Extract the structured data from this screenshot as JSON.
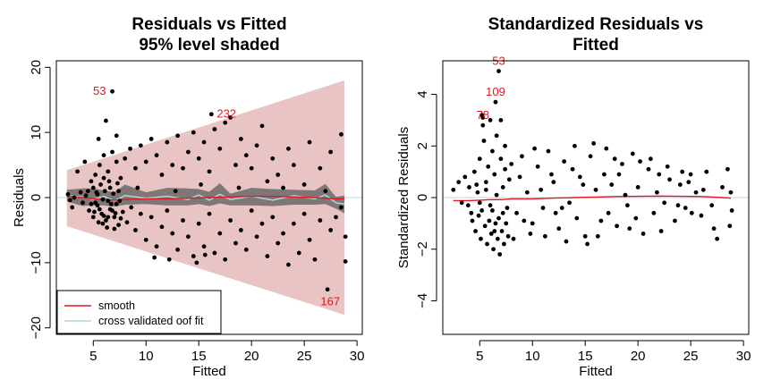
{
  "chart_data": [
    {
      "type": "scatter",
      "title_lines": [
        "Residuals vs Fitted",
        "95% level shaded"
      ],
      "xlabel": "Fitted",
      "ylabel": "Residuals",
      "xlim": [
        1.5,
        30.5
      ],
      "ylim": [
        -21,
        21
      ],
      "xticks": [
        5,
        10,
        15,
        20,
        25,
        30
      ],
      "yticks": [
        -20,
        -10,
        0,
        10,
        20
      ],
      "reference_line_y": 0,
      "band": {
        "x": [
          2.5,
          28.8
        ],
        "upper": [
          4.2,
          18.0
        ],
        "lower": [
          -4.4,
          -18.0
        ]
      },
      "legend": {
        "position": "bottom-left",
        "entries": [
          {
            "label": "smooth",
            "color": "#e8141f"
          },
          {
            "label": "cross validated oof fit",
            "color": "#a9d8df"
          }
        ]
      },
      "annotations": [
        {
          "label": "53",
          "x": 6.8,
          "y": 16.3
        },
        {
          "label": "232",
          "x": 16.2,
          "y": 12.8
        },
        {
          "label": "167",
          "x": 27.2,
          "y": -14.1
        }
      ],
      "smooth": {
        "x": [
          2.5,
          4,
          5,
          6,
          7,
          8,
          10,
          12,
          14,
          16,
          18,
          20,
          22,
          24,
          26,
          28,
          28.8
        ],
        "y": [
          0.2,
          0.0,
          -0.2,
          -0.3,
          -0.4,
          -0.3,
          -0.2,
          -0.2,
          -0.1,
          0.0,
          0.1,
          0.2,
          0.2,
          0.1,
          0.0,
          -0.2,
          -0.2
        ]
      },
      "oof_fit": {
        "x": [
          2.5,
          4,
          5,
          6,
          7,
          8,
          10,
          12,
          14,
          15,
          16,
          17,
          18,
          20,
          22,
          24,
          26,
          27,
          28,
          28.8
        ],
        "y": [
          0.3,
          0.1,
          -0.3,
          0.2,
          -0.5,
          0.3,
          -0.1,
          0.2,
          -0.3,
          0.4,
          -0.4,
          0.5,
          -0.3,
          0.2,
          -0.4,
          0.3,
          -0.2,
          0.4,
          -0.8,
          -1.0
        ]
      },
      "points": [
        [
          6.8,
          16.3
        ],
        [
          16.2,
          12.8
        ],
        [
          27.2,
          -14.1
        ],
        [
          6.2,
          11.8
        ],
        [
          5.5,
          9.0
        ],
        [
          7.2,
          9.5
        ],
        [
          18.0,
          12.3
        ],
        [
          21.0,
          11.0
        ],
        [
          17.5,
          11.5
        ],
        [
          3.5,
          4.0
        ],
        [
          4.2,
          5.5
        ],
        [
          4.8,
          2.5
        ],
        [
          5.2,
          3.5
        ],
        [
          5.6,
          5.0
        ],
        [
          6.0,
          6.5
        ],
        [
          6.4,
          4.0
        ],
        [
          6.8,
          7.0
        ],
        [
          7.2,
          5.5
        ],
        [
          7.6,
          3.0
        ],
        [
          8.0,
          6.0
        ],
        [
          8.5,
          7.5
        ],
        [
          9.0,
          4.5
        ],
        [
          9.5,
          8.0
        ],
        [
          10.0,
          5.5
        ],
        [
          10.5,
          9.0
        ],
        [
          11.0,
          6.5
        ],
        [
          11.5,
          3.5
        ],
        [
          12.0,
          8.5
        ],
        [
          12.5,
          5.0
        ],
        [
          13.0,
          9.5
        ],
        [
          13.5,
          4.5
        ],
        [
          14.0,
          7.0
        ],
        [
          14.5,
          10.0
        ],
        [
          15.0,
          6.0
        ],
        [
          15.5,
          8.5
        ],
        [
          16.0,
          4.0
        ],
        [
          16.5,
          10.5
        ],
        [
          17.0,
          7.5
        ],
        [
          18.5,
          5.0
        ],
        [
          19.0,
          9.0
        ],
        [
          19.5,
          6.5
        ],
        [
          20.0,
          4.5
        ],
        [
          20.5,
          8.0
        ],
        [
          22.0,
          6.0
        ],
        [
          22.5,
          3.5
        ],
        [
          23.5,
          7.5
        ],
        [
          24.0,
          5.0
        ],
        [
          25.5,
          8.5
        ],
        [
          26.5,
          4.5
        ],
        [
          27.5,
          7.0
        ],
        [
          28.5,
          9.7
        ],
        [
          4.5,
          1.0
        ],
        [
          5.0,
          1.5
        ],
        [
          5.4,
          0.5
        ],
        [
          6.6,
          1.5
        ],
        [
          7.4,
          1.0
        ],
        [
          9.2,
          1.5
        ],
        [
          12.8,
          1.0
        ],
        [
          15.2,
          2.0
        ],
        [
          18.8,
          1.5
        ],
        [
          21.5,
          2.5
        ],
        [
          23.0,
          1.5
        ],
        [
          25.0,
          2.0
        ],
        [
          27.0,
          1.0
        ],
        [
          3.0,
          -1.5
        ],
        [
          4.0,
          -0.8
        ],
        [
          4.6,
          -2.0
        ],
        [
          5.0,
          -3.0
        ],
        [
          5.4,
          -1.2
        ],
        [
          5.8,
          -2.5
        ],
        [
          6.2,
          -3.5
        ],
        [
          6.6,
          -1.8
        ],
        [
          7.0,
          -3.0
        ],
        [
          7.4,
          -4.2
        ],
        [
          7.8,
          -2.2
        ],
        [
          8.2,
          -3.8
        ],
        [
          8.6,
          -1.5
        ],
        [
          9.0,
          -5.0
        ],
        [
          9.5,
          -2.5
        ],
        [
          10.0,
          -6.5
        ],
        [
          10.5,
          -3.0
        ],
        [
          11.0,
          -7.5
        ],
        [
          11.5,
          -4.5
        ],
        [
          12.0,
          -2.0
        ],
        [
          12.5,
          -5.5
        ],
        [
          13.0,
          -8.0
        ],
        [
          13.5,
          -3.5
        ],
        [
          14.0,
          -6.0
        ],
        [
          14.5,
          -9.0
        ],
        [
          15.0,
          -4.0
        ],
        [
          15.5,
          -7.5
        ],
        [
          16.0,
          -2.5
        ],
        [
          16.5,
          -8.5
        ],
        [
          17.0,
          -5.5
        ],
        [
          17.5,
          -9.5
        ],
        [
          18.0,
          -3.5
        ],
        [
          18.5,
          -7.0
        ],
        [
          19.0,
          -5.0
        ],
        [
          19.5,
          -8.0
        ],
        [
          20.0,
          -2.0
        ],
        [
          20.5,
          -6.0
        ],
        [
          21.0,
          -4.0
        ],
        [
          21.5,
          -9.0
        ],
        [
          22.0,
          -3.0
        ],
        [
          22.5,
          -7.0
        ],
        [
          23.0,
          -5.5
        ],
        [
          23.5,
          -10.3
        ],
        [
          24.0,
          -4.0
        ],
        [
          24.5,
          -8.5
        ],
        [
          25.0,
          -2.5
        ],
        [
          25.5,
          -6.5
        ],
        [
          26.0,
          -9.5
        ],
        [
          26.5,
          -3.5
        ],
        [
          27.5,
          -5.0
        ],
        [
          28.0,
          -3.0
        ],
        [
          28.5,
          -1.5
        ],
        [
          28.9,
          -6.0
        ],
        [
          28.9,
          -9.8
        ],
        [
          14.8,
          -10.0
        ],
        [
          15.6,
          -8.8
        ],
        [
          10.8,
          -9.2
        ],
        [
          12.2,
          -9.5
        ],
        [
          5.2,
          -0.8
        ],
        [
          5.6,
          -1.8
        ],
        [
          6.0,
          -2.8
        ],
        [
          6.4,
          -0.5
        ],
        [
          6.8,
          -2.0
        ],
        [
          7.2,
          -1.0
        ],
        [
          7.6,
          -3.2
        ],
        [
          5.9,
          -4.0
        ],
        [
          6.3,
          -4.6
        ],
        [
          7.0,
          -4.8
        ],
        [
          5.3,
          0.8
        ],
        [
          5.7,
          2.0
        ],
        [
          6.1,
          1.0
        ],
        [
          6.5,
          2.5
        ],
        [
          6.9,
          0.6
        ],
        [
          7.3,
          2.2
        ],
        [
          5.9,
          -0.3
        ],
        [
          6.7,
          -1.0
        ],
        [
          7.1,
          -2.4
        ],
        [
          6.0,
          3.0
        ],
        [
          4.8,
          -1.0
        ],
        [
          5.1,
          -2.2
        ],
        [
          5.5,
          -3.8
        ],
        [
          6.4,
          -3.0
        ],
        [
          7.5,
          -0.5
        ],
        [
          4.3,
          0.3
        ],
        [
          3.8,
          0.8
        ],
        [
          3.2,
          0.0
        ],
        [
          2.8,
          -0.4
        ],
        [
          2.6,
          0.5
        ]
      ]
    },
    {
      "type": "scatter",
      "title_lines": [
        "Standardized Residuals vs",
        "Fitted"
      ],
      "xlabel": "Fitted",
      "ylabel": "Standardized Residuals",
      "xlim": [
        1.5,
        30.5
      ],
      "ylim": [
        -5.3,
        5.3
      ],
      "xticks": [
        5,
        10,
        15,
        20,
        25,
        30
      ],
      "yticks": [
        -4,
        -2,
        0,
        2,
        4
      ],
      "reference_line_y": 0,
      "annotations": [
        {
          "label": "53",
          "x": 6.8,
          "y": 4.9
        },
        {
          "label": "109",
          "x": 6.5,
          "y": 3.7
        },
        {
          "label": "78",
          "x": 5.3,
          "y": 2.8
        }
      ],
      "smooth": {
        "x": [
          2.5,
          4,
          5,
          6,
          7,
          8,
          10,
          12,
          14,
          16,
          18,
          20,
          22,
          24,
          26,
          28,
          28.8
        ],
        "y": [
          -0.12,
          -0.12,
          -0.1,
          -0.08,
          -0.08,
          -0.05,
          -0.05,
          -0.02,
          0.0,
          0.02,
          0.04,
          0.05,
          0.06,
          0.05,
          0.04,
          0.0,
          -0.02
        ]
      },
      "points": [
        [
          6.8,
          4.9
        ],
        [
          6.5,
          3.7
        ],
        [
          5.3,
          2.8
        ],
        [
          2.5,
          0.3
        ],
        [
          3.0,
          0.6
        ],
        [
          3.3,
          -0.2
        ],
        [
          3.6,
          0.8
        ],
        [
          4.0,
          0.4
        ],
        [
          4.2,
          -0.6
        ],
        [
          4.5,
          1.0
        ],
        [
          4.8,
          0.2
        ],
        [
          5.0,
          1.5
        ],
        [
          5.2,
          -0.5
        ],
        [
          5.4,
          2.2
        ],
        [
          5.6,
          0.6
        ],
        [
          5.8,
          1.2
        ],
        [
          6.0,
          -0.3
        ],
        [
          6.2,
          1.8
        ],
        [
          6.4,
          0.9
        ],
        [
          6.6,
          2.4
        ],
        [
          6.8,
          -0.8
        ],
        [
          7.0,
          1.5
        ],
        [
          7.2,
          0.4
        ],
        [
          7.4,
          2.0
        ],
        [
          7.6,
          -0.4
        ],
        [
          4.3,
          -0.9
        ],
        [
          4.6,
          -1.3
        ],
        [
          4.9,
          -0.7
        ],
        [
          5.1,
          -1.6
        ],
        [
          5.5,
          -1.1
        ],
        [
          5.7,
          -1.8
        ],
        [
          5.9,
          -0.9
        ],
        [
          6.1,
          -1.4
        ],
        [
          6.3,
          -2.0
        ],
        [
          6.5,
          -1.0
        ],
        [
          6.7,
          -1.6
        ],
        [
          6.9,
          -2.2
        ],
        [
          7.1,
          -1.3
        ],
        [
          7.3,
          -1.8
        ],
        [
          7.5,
          -1.0
        ],
        [
          7.7,
          -1.5
        ],
        [
          5.3,
          3.1
        ],
        [
          6.0,
          3.0
        ],
        [
          5.2,
          3.2
        ],
        [
          7.0,
          3.0
        ],
        [
          8.0,
          1.3
        ],
        [
          8.5,
          -0.6
        ],
        [
          9.0,
          1.6
        ],
        [
          9.5,
          0.2
        ],
        [
          10.0,
          -1.0
        ],
        [
          10.5,
          1.2
        ],
        [
          11.0,
          -0.4
        ],
        [
          11.5,
          1.8
        ],
        [
          12.0,
          0.6
        ],
        [
          12.5,
          -1.2
        ],
        [
          13.0,
          1.4
        ],
        [
          13.5,
          -0.2
        ],
        [
          14.0,
          2.0
        ],
        [
          14.5,
          0.8
        ],
        [
          15.0,
          -1.5
        ],
        [
          15.5,
          1.6
        ],
        [
          16.0,
          0.3
        ],
        [
          16.5,
          -0.9
        ],
        [
          17.0,
          1.9
        ],
        [
          17.5,
          0.5
        ],
        [
          18.0,
          -1.1
        ],
        [
          18.5,
          1.3
        ],
        [
          19.0,
          -0.3
        ],
        [
          19.5,
          1.7
        ],
        [
          20.0,
          0.4
        ],
        [
          20.5,
          -1.4
        ],
        [
          21.0,
          1.1
        ],
        [
          21.5,
          -0.6
        ],
        [
          22.0,
          0.9
        ],
        [
          22.5,
          -0.2
        ],
        [
          23.0,
          0.7
        ],
        [
          23.5,
          -0.9
        ],
        [
          24.0,
          0.5
        ],
        [
          24.5,
          -0.4
        ],
        [
          25.0,
          0.9
        ],
        [
          25.5,
          0.2
        ],
        [
          26.0,
          -0.7
        ],
        [
          26.5,
          1.0
        ],
        [
          27.0,
          -0.3
        ],
        [
          27.5,
          -1.6
        ],
        [
          28.0,
          0.4
        ],
        [
          28.5,
          1.1
        ],
        [
          28.8,
          0.2
        ],
        [
          28.9,
          -0.5
        ],
        [
          28.7,
          -1.1
        ],
        [
          27.2,
          -1.2
        ],
        [
          25.1,
          -0.6
        ],
        [
          24.2,
          1.0
        ],
        [
          22.8,
          1.2
        ],
        [
          21.2,
          1.5
        ],
        [
          8.2,
          -1.6
        ],
        [
          9.2,
          -0.9
        ],
        [
          10.2,
          1.9
        ],
        [
          11.2,
          -1.5
        ],
        [
          12.2,
          -0.6
        ],
        [
          13.2,
          -1.7
        ],
        [
          14.2,
          -0.8
        ],
        [
          15.2,
          -1.8
        ],
        [
          16.2,
          -1.5
        ],
        [
          17.2,
          -0.6
        ],
        [
          18.2,
          0.9
        ],
        [
          19.2,
          -1.2
        ],
        [
          20.2,
          1.4
        ],
        [
          13.8,
          1.1
        ],
        [
          15.8,
          2.1
        ],
        [
          16.8,
          0.9
        ],
        [
          18.8,
          0.1
        ],
        [
          19.8,
          -0.8
        ],
        [
          8.8,
          0.8
        ],
        [
          10.8,
          0.3
        ],
        [
          12.8,
          -0.4
        ],
        [
          14.8,
          0.5
        ],
        [
          9.8,
          -1.4
        ],
        [
          11.8,
          0.9
        ],
        [
          17.8,
          1.5
        ],
        [
          23.8,
          -0.3
        ],
        [
          26.2,
          0.3
        ],
        [
          24.8,
          0.6
        ],
        [
          22.2,
          -1.3
        ],
        [
          21.8,
          0.2
        ],
        [
          5.0,
          -0.2
        ],
        [
          5.6,
          0.3
        ],
        [
          6.2,
          -0.5
        ],
        [
          6.6,
          0.1
        ],
        [
          7.2,
          -0.6
        ],
        [
          7.8,
          0.7
        ],
        [
          4.7,
          0.5
        ],
        [
          3.9,
          -0.3
        ],
        [
          7.4,
          1.1
        ],
        [
          6.4,
          -1.3
        ]
      ]
    }
  ]
}
